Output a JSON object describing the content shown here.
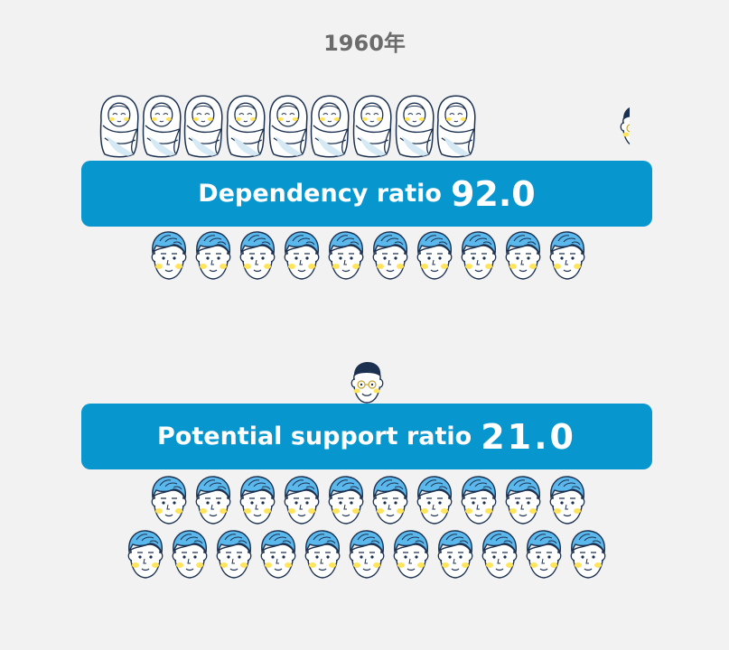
{
  "year": "1960年",
  "dependency": {
    "label": "Dependency ratio",
    "value": "92.0"
  },
  "support": {
    "label": "Potential support ratio",
    "value": "21.0"
  },
  "colors": {
    "banner": "#0896cf",
    "hair": "#5bb8ec",
    "outline": "#1c3150",
    "cheek": "#ffe45c",
    "background": "#f2f2f2",
    "year_text": "#6b6b6b"
  },
  "icons": {
    "child": "baby-icon",
    "working_age": "adult-icon",
    "elderly": "elder-icon"
  },
  "counts": {
    "babies_row": 9,
    "adults_row_dependency": 10,
    "elder_support": 1,
    "adults_support_row1": 10,
    "adults_support_row2": 11
  }
}
